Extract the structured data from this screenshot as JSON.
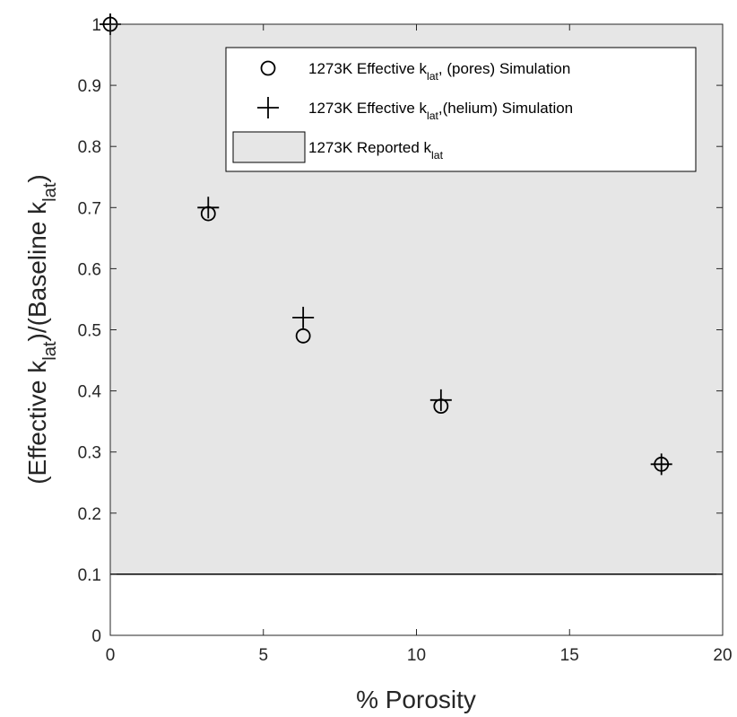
{
  "chart_data": {
    "type": "scatter",
    "title": "",
    "xlabel": "% Porosity",
    "ylabel": {
      "parts": [
        {
          "text": "(Effective k"
        },
        {
          "text": "lat",
          "sub": true
        },
        {
          "text": ")/(Baseline k"
        },
        {
          "text": "lat",
          "sub": true
        },
        {
          "text": ")"
        }
      ]
    },
    "xlim": [
      0,
      20
    ],
    "ylim": [
      0,
      1
    ],
    "xticks": [
      "0",
      "5",
      "10",
      "15",
      "20"
    ],
    "yticks": [
      "0",
      "0.1",
      "0.2",
      "0.3",
      "0.4",
      "0.5",
      "0.6",
      "0.7",
      "0.8",
      "0.9",
      "1"
    ],
    "grid": false,
    "legend_position": "top-right",
    "colors": {
      "band_fill": "#e6e6e6",
      "markers": "#000000",
      "axes": "#262626"
    },
    "reported_band": {
      "name": "1273K Reported k_lat",
      "range": [
        0.1,
        1.0
      ]
    },
    "series": [
      {
        "name": "1273K Effective k_lat, (pores) Simulation",
        "marker": "circle",
        "x": [
          0,
          3.2,
          6.3,
          10.8,
          18.0
        ],
        "y": [
          1.0,
          0.69,
          0.49,
          0.375,
          0.28
        ]
      },
      {
        "name": "1273K Effective k_lat,(helium) Simulation",
        "marker": "plus",
        "x": [
          0,
          3.2,
          6.3,
          10.8,
          18.0
        ],
        "y": [
          1.0,
          0.7,
          0.52,
          0.385,
          0.28
        ]
      }
    ],
    "legend": [
      {
        "marker": "circle",
        "parts": [
          {
            "text": "1273K Effective k"
          },
          {
            "text": "lat",
            "sub": true
          },
          {
            "text": ", (pores) Simulation"
          }
        ]
      },
      {
        "marker": "plus",
        "parts": [
          {
            "text": "1273K Effective k"
          },
          {
            "text": "lat",
            "sub": true
          },
          {
            "text": ",(helium) Simulation"
          }
        ]
      },
      {
        "marker": "patch",
        "parts": [
          {
            "text": "1273K Reported k"
          },
          {
            "text": "lat",
            "sub": true
          }
        ]
      }
    ]
  }
}
